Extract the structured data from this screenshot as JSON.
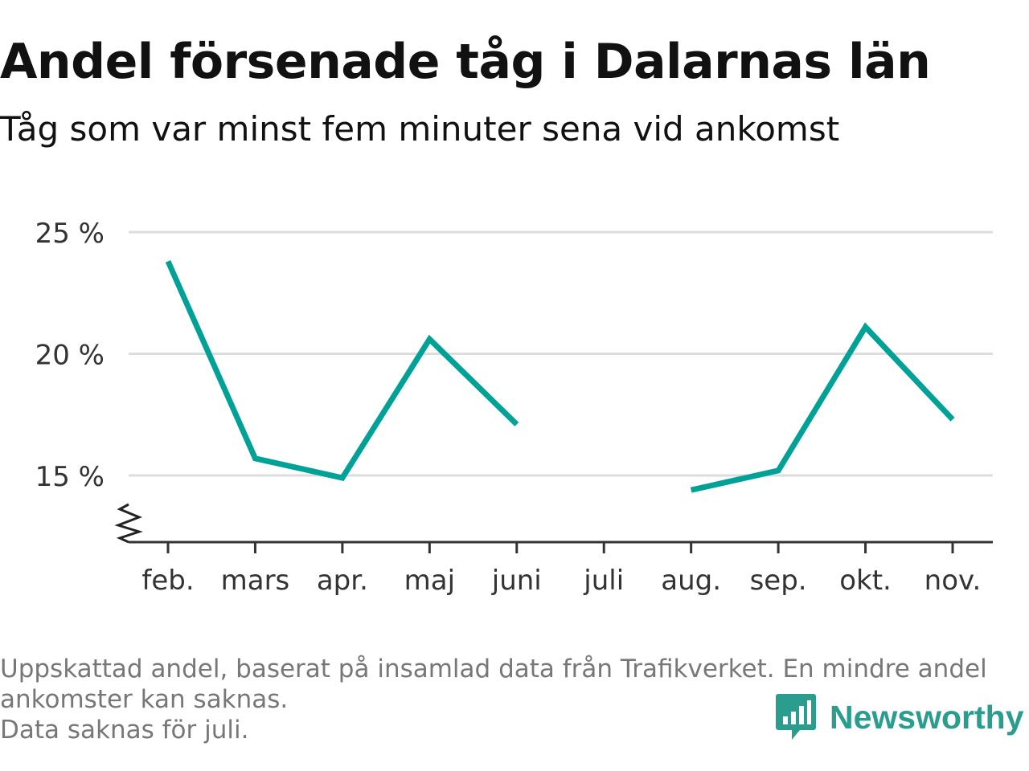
{
  "header": {
    "title": "Andel försenade tåg i Dalarnas län",
    "subtitle": "Tåg som var minst fem minuter sena vid ankomst"
  },
  "footer": {
    "note_lines": [
      "Uppskattad andel, baserat på insamlad data från Trafikverket. En mindre andel",
      "ankomster kan saknas.",
      "Data saknas för juli."
    ],
    "brand": "Newsworthy",
    "brand_icon": "bar-chart-speech-bubble-icon",
    "brand_color": "#2a9d8f"
  },
  "chart_data": {
    "type": "line",
    "title": "Andel försenade tåg i Dalarnas län",
    "subtitle": "Tåg som var minst fem minuter sena vid ankomst",
    "categories": [
      "feb.",
      "mars",
      "apr.",
      "maj",
      "juni",
      "juli",
      "aug.",
      "sep.",
      "okt.",
      "nov."
    ],
    "series": [
      {
        "values": [
          23.8,
          15.7,
          14.9,
          20.6,
          17.1,
          null,
          14.4,
          15.2,
          21.1,
          17.3
        ]
      }
    ],
    "y_ticks": [
      15,
      20,
      25
    ],
    "y_tick_labels": [
      "15 %",
      "20 %",
      "25 %"
    ],
    "ylim": [
      12.3,
      25
    ],
    "y_axis_break": true,
    "grid": true,
    "line_color": "#00a196"
  }
}
